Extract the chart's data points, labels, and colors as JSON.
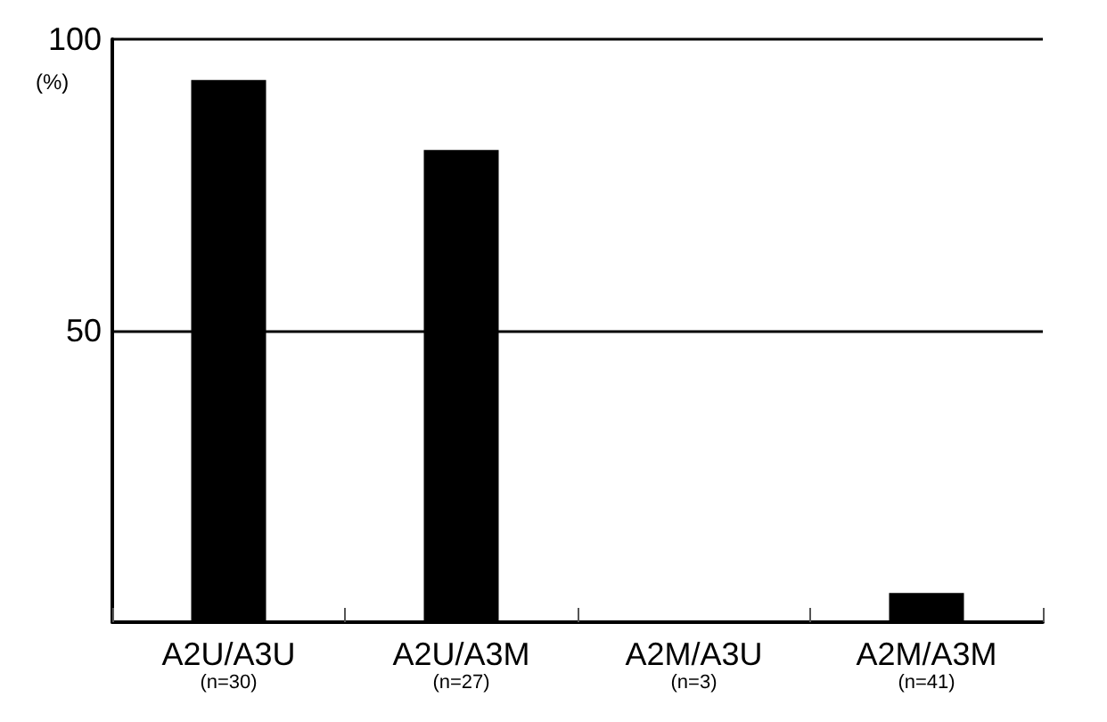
{
  "chart_data": {
    "type": "bar",
    "ylabel": "(%)",
    "categories": [
      "A2U/A3U\n(n=30)",
      "A2U/A3M\n(n=27)",
      "A2M/A3U\n(n=3)",
      "A2M/A3M\n(n=41)"
    ],
    "values": [
      93,
      81,
      0,
      5
    ],
    "color": "#000000",
    "ylim": [
      0,
      100
    ],
    "yticks": [
      50,
      100
    ],
    "grid": "y"
  }
}
